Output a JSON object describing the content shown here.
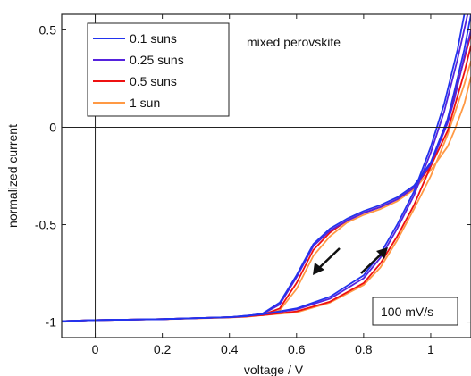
{
  "chart_data": {
    "type": "line",
    "title": "",
    "xlabel": "voltage / V",
    "ylabel": "normalized current",
    "xlim": [
      -0.1,
      1.12
    ],
    "ylim": [
      -1.08,
      0.58
    ],
    "xticks": [
      0,
      0.2,
      0.4,
      0.6,
      0.8,
      1
    ],
    "xtick_labels": [
      "0",
      "0.2",
      "0.4",
      "0.6",
      "0.8",
      "1"
    ],
    "yticks": [
      -1,
      -0.5,
      0,
      0.5
    ],
    "ytick_labels": [
      "-1",
      "-0.5",
      "0",
      "0.5"
    ],
    "grid": false,
    "legend_position": "top-left",
    "annotations": {
      "sample": "mixed perovskite",
      "scan_rate": "100 mV/s"
    },
    "series": [
      {
        "name": "0.1 suns",
        "color": "#2233ee",
        "forward": {
          "x": [
            -0.1,
            0.0,
            0.2,
            0.4,
            0.5,
            0.6,
            0.7,
            0.8,
            0.85,
            0.9,
            0.95,
            1.0,
            1.04,
            1.08,
            1.1
          ],
          "y": [
            -0.995,
            -0.99,
            -0.985,
            -0.975,
            -0.96,
            -0.93,
            -0.87,
            -0.76,
            -0.65,
            -0.5,
            -0.33,
            -0.1,
            0.12,
            0.4,
            0.58
          ]
        },
        "reverse": {
          "x": [
            1.12,
            1.1,
            1.07,
            1.05,
            1.0,
            0.95,
            0.9,
            0.85,
            0.8,
            0.75,
            0.7,
            0.65,
            0.6,
            0.55,
            0.5,
            0.45,
            0.4,
            0.2,
            0.0,
            -0.1
          ],
          "y": [
            0.58,
            0.4,
            0.18,
            0.04,
            -0.18,
            -0.3,
            -0.36,
            -0.4,
            -0.43,
            -0.47,
            -0.52,
            -0.6,
            -0.76,
            -0.9,
            -0.955,
            -0.97,
            -0.975,
            -0.985,
            -0.99,
            -0.995
          ]
        }
      },
      {
        "name": "0.25 suns",
        "color": "#5522dd",
        "forward": {
          "x": [
            -0.1,
            0.0,
            0.2,
            0.4,
            0.5,
            0.6,
            0.7,
            0.8,
            0.85,
            0.9,
            0.95,
            1.0,
            1.04,
            1.08,
            1.11
          ],
          "y": [
            -0.995,
            -0.99,
            -0.985,
            -0.975,
            -0.96,
            -0.935,
            -0.88,
            -0.775,
            -0.67,
            -0.52,
            -0.35,
            -0.13,
            0.08,
            0.35,
            0.58
          ]
        },
        "reverse": {
          "x": [
            1.12,
            1.1,
            1.07,
            1.05,
            1.0,
            0.95,
            0.9,
            0.85,
            0.8,
            0.75,
            0.7,
            0.65,
            0.6,
            0.55,
            0.5,
            0.45,
            0.4,
            0.2,
            0.0,
            -0.1
          ],
          "y": [
            0.5,
            0.36,
            0.14,
            0.02,
            -0.19,
            -0.31,
            -0.37,
            -0.41,
            -0.44,
            -0.48,
            -0.53,
            -0.61,
            -0.77,
            -0.91,
            -0.957,
            -0.97,
            -0.975,
            -0.985,
            -0.99,
            -0.995
          ]
        }
      },
      {
        "name": "0.5 suns",
        "color": "#ee1111",
        "forward": {
          "x": [
            -0.1,
            0.0,
            0.2,
            0.4,
            0.5,
            0.6,
            0.7,
            0.8,
            0.85,
            0.9,
            0.95,
            1.0,
            1.05,
            1.1,
            1.12
          ],
          "y": [
            -0.995,
            -0.99,
            -0.985,
            -0.975,
            -0.965,
            -0.945,
            -0.895,
            -0.8,
            -0.7,
            -0.56,
            -0.4,
            -0.2,
            0.04,
            0.35,
            0.48
          ]
        },
        "reverse": {
          "x": [
            1.12,
            1.1,
            1.07,
            1.05,
            1.0,
            0.95,
            0.9,
            0.85,
            0.8,
            0.75,
            0.7,
            0.65,
            0.6,
            0.55,
            0.5,
            0.45,
            0.4,
            0.2,
            0.0,
            -0.1
          ],
          "y": [
            0.42,
            0.28,
            0.1,
            -0.02,
            -0.2,
            -0.31,
            -0.37,
            -0.41,
            -0.44,
            -0.48,
            -0.54,
            -0.63,
            -0.8,
            -0.93,
            -0.962,
            -0.972,
            -0.976,
            -0.985,
            -0.99,
            -0.995
          ]
        }
      },
      {
        "name": "1 sun",
        "color": "#ff9944",
        "forward": {
          "x": [
            -0.1,
            0.0,
            0.2,
            0.4,
            0.5,
            0.6,
            0.7,
            0.8,
            0.85,
            0.9,
            0.95,
            1.0,
            1.05,
            1.1,
            1.12
          ],
          "y": [
            -0.995,
            -0.99,
            -0.985,
            -0.975,
            -0.965,
            -0.95,
            -0.9,
            -0.81,
            -0.72,
            -0.58,
            -0.42,
            -0.25,
            -0.04,
            0.22,
            0.34
          ]
        },
        "reverse": {
          "x": [
            1.12,
            1.1,
            1.07,
            1.05,
            1.0,
            0.95,
            0.9,
            0.85,
            0.8,
            0.75,
            0.7,
            0.65,
            0.6,
            0.55,
            0.5,
            0.45,
            0.4,
            0.2,
            0.0,
            -0.1
          ],
          "y": [
            0.26,
            0.12,
            -0.02,
            -0.1,
            -0.22,
            -0.32,
            -0.38,
            -0.42,
            -0.45,
            -0.49,
            -0.56,
            -0.66,
            -0.83,
            -0.94,
            -0.965,
            -0.973,
            -0.977,
            -0.986,
            -0.99,
            -0.995
          ]
        }
      }
    ]
  }
}
